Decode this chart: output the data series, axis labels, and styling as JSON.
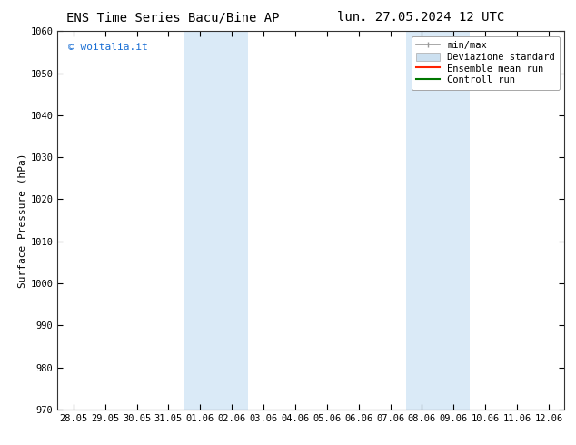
{
  "title_left": "ENS Time Series Bacu/Bine AP",
  "title_right": "lun. 27.05.2024 12 UTC",
  "ylabel": "Surface Pressure (hPa)",
  "ylim": [
    970,
    1060
  ],
  "yticks": [
    970,
    980,
    990,
    1000,
    1010,
    1020,
    1030,
    1040,
    1050,
    1060
  ],
  "xlabel_ticks": [
    "28.05",
    "29.05",
    "30.05",
    "31.05",
    "01.06",
    "02.06",
    "03.06",
    "04.06",
    "05.06",
    "06.06",
    "07.06",
    "08.06",
    "09.06",
    "10.06",
    "11.06",
    "12.06"
  ],
  "x_positions": [
    0,
    1,
    2,
    3,
    4,
    5,
    6,
    7,
    8,
    9,
    10,
    11,
    12,
    13,
    14,
    15
  ],
  "shaded_regions": [
    {
      "xmin": 4.0,
      "xmax": 6.0,
      "color": "#daeaf7"
    },
    {
      "xmin": 11.0,
      "xmax": 13.0,
      "color": "#daeaf7"
    }
  ],
  "watermark_text": "© woitalia.it",
  "watermark_color": "#1a6fd4",
  "background_color": "#ffffff",
  "legend_entries": [
    {
      "label": "min/max",
      "color": "#999999",
      "lw": 1.2,
      "style": "solid",
      "type": "errorbar"
    },
    {
      "label": "Deviazione standard",
      "color": "#cce0f0",
      "lw": 5,
      "style": "solid",
      "type": "patch"
    },
    {
      "label": "Ensemble mean run",
      "color": "#ff2200",
      "lw": 1.5,
      "style": "solid",
      "type": "line"
    },
    {
      "label": "Controll run",
      "color": "#007700",
      "lw": 1.5,
      "style": "solid",
      "type": "line"
    }
  ],
  "title_fontsize": 10,
  "axis_fontsize": 8,
  "tick_fontsize": 7.5,
  "legend_fontsize": 7.5,
  "watermark_fontsize": 8
}
